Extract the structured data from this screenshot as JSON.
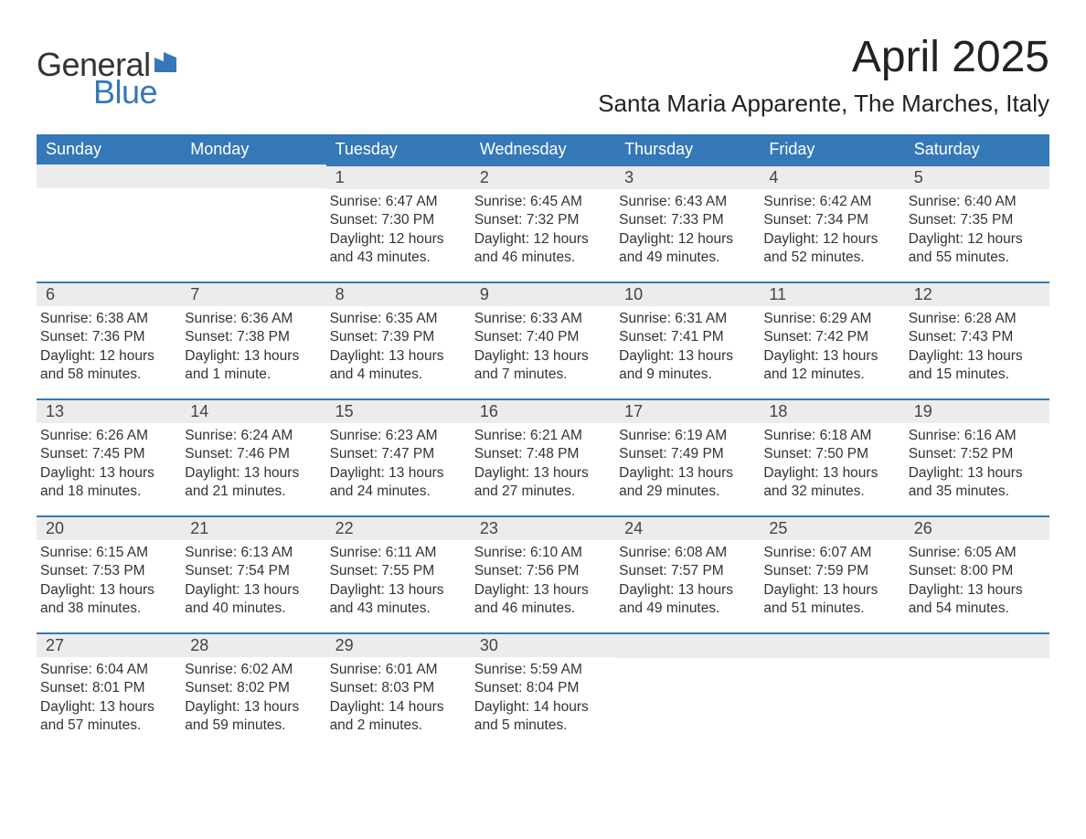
{
  "logo": {
    "text1": "General",
    "text2": "Blue"
  },
  "title": "April 2025",
  "location": "Santa Maria Apparente, The Marches, Italy",
  "colors": {
    "header_bg": "#3578b8",
    "header_text": "#ffffff",
    "divider": "#3578b8",
    "daynum_bg": "#ececec",
    "body_text": "#333333",
    "logo_blue": "#3578b8"
  },
  "weekdays": [
    "Sunday",
    "Monday",
    "Tuesday",
    "Wednesday",
    "Thursday",
    "Friday",
    "Saturday"
  ],
  "labels": {
    "sunrise": "Sunrise:",
    "sunset": "Sunset:",
    "daylight": "Daylight:"
  },
  "weeks": [
    [
      null,
      null,
      {
        "n": "1",
        "sunrise": "6:47 AM",
        "sunset": "7:30 PM",
        "daylight": "12 hours and 43 minutes."
      },
      {
        "n": "2",
        "sunrise": "6:45 AM",
        "sunset": "7:32 PM",
        "daylight": "12 hours and 46 minutes."
      },
      {
        "n": "3",
        "sunrise": "6:43 AM",
        "sunset": "7:33 PM",
        "daylight": "12 hours and 49 minutes."
      },
      {
        "n": "4",
        "sunrise": "6:42 AM",
        "sunset": "7:34 PM",
        "daylight": "12 hours and 52 minutes."
      },
      {
        "n": "5",
        "sunrise": "6:40 AM",
        "sunset": "7:35 PM",
        "daylight": "12 hours and 55 minutes."
      }
    ],
    [
      {
        "n": "6",
        "sunrise": "6:38 AM",
        "sunset": "7:36 PM",
        "daylight": "12 hours and 58 minutes."
      },
      {
        "n": "7",
        "sunrise": "6:36 AM",
        "sunset": "7:38 PM",
        "daylight": "13 hours and 1 minute."
      },
      {
        "n": "8",
        "sunrise": "6:35 AM",
        "sunset": "7:39 PM",
        "daylight": "13 hours and 4 minutes."
      },
      {
        "n": "9",
        "sunrise": "6:33 AM",
        "sunset": "7:40 PM",
        "daylight": "13 hours and 7 minutes."
      },
      {
        "n": "10",
        "sunrise": "6:31 AM",
        "sunset": "7:41 PM",
        "daylight": "13 hours and 9 minutes."
      },
      {
        "n": "11",
        "sunrise": "6:29 AM",
        "sunset": "7:42 PM",
        "daylight": "13 hours and 12 minutes."
      },
      {
        "n": "12",
        "sunrise": "6:28 AM",
        "sunset": "7:43 PM",
        "daylight": "13 hours and 15 minutes."
      }
    ],
    [
      {
        "n": "13",
        "sunrise": "6:26 AM",
        "sunset": "7:45 PM",
        "daylight": "13 hours and 18 minutes."
      },
      {
        "n": "14",
        "sunrise": "6:24 AM",
        "sunset": "7:46 PM",
        "daylight": "13 hours and 21 minutes."
      },
      {
        "n": "15",
        "sunrise": "6:23 AM",
        "sunset": "7:47 PM",
        "daylight": "13 hours and 24 minutes."
      },
      {
        "n": "16",
        "sunrise": "6:21 AM",
        "sunset": "7:48 PM",
        "daylight": "13 hours and 27 minutes."
      },
      {
        "n": "17",
        "sunrise": "6:19 AM",
        "sunset": "7:49 PM",
        "daylight": "13 hours and 29 minutes."
      },
      {
        "n": "18",
        "sunrise": "6:18 AM",
        "sunset": "7:50 PM",
        "daylight": "13 hours and 32 minutes."
      },
      {
        "n": "19",
        "sunrise": "6:16 AM",
        "sunset": "7:52 PM",
        "daylight": "13 hours and 35 minutes."
      }
    ],
    [
      {
        "n": "20",
        "sunrise": "6:15 AM",
        "sunset": "7:53 PM",
        "daylight": "13 hours and 38 minutes."
      },
      {
        "n": "21",
        "sunrise": "6:13 AM",
        "sunset": "7:54 PM",
        "daylight": "13 hours and 40 minutes."
      },
      {
        "n": "22",
        "sunrise": "6:11 AM",
        "sunset": "7:55 PM",
        "daylight": "13 hours and 43 minutes."
      },
      {
        "n": "23",
        "sunrise": "6:10 AM",
        "sunset": "7:56 PM",
        "daylight": "13 hours and 46 minutes."
      },
      {
        "n": "24",
        "sunrise": "6:08 AM",
        "sunset": "7:57 PM",
        "daylight": "13 hours and 49 minutes."
      },
      {
        "n": "25",
        "sunrise": "6:07 AM",
        "sunset": "7:59 PM",
        "daylight": "13 hours and 51 minutes."
      },
      {
        "n": "26",
        "sunrise": "6:05 AM",
        "sunset": "8:00 PM",
        "daylight": "13 hours and 54 minutes."
      }
    ],
    [
      {
        "n": "27",
        "sunrise": "6:04 AM",
        "sunset": "8:01 PM",
        "daylight": "13 hours and 57 minutes."
      },
      {
        "n": "28",
        "sunrise": "6:02 AM",
        "sunset": "8:02 PM",
        "daylight": "13 hours and 59 minutes."
      },
      {
        "n": "29",
        "sunrise": "6:01 AM",
        "sunset": "8:03 PM",
        "daylight": "14 hours and 2 minutes."
      },
      {
        "n": "30",
        "sunrise": "5:59 AM",
        "sunset": "8:04 PM",
        "daylight": "14 hours and 5 minutes."
      },
      null,
      null,
      null
    ]
  ]
}
